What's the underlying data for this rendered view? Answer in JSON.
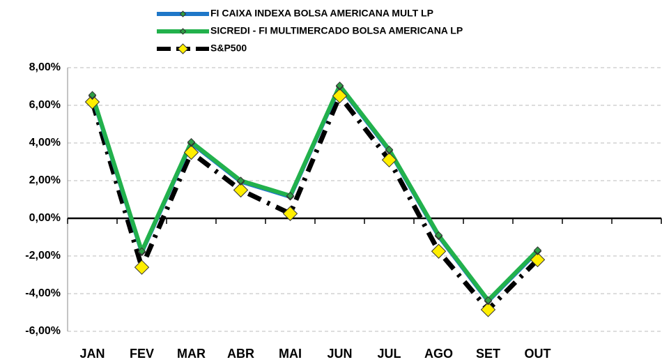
{
  "chart_data": {
    "type": "line",
    "categories": [
      "JAN",
      "FEV",
      "MAR",
      "ABR",
      "MAI",
      "JUN",
      "JUL",
      "AGO",
      "SET",
      "OUT",
      null,
      null
    ],
    "series": [
      {
        "name": "FI CAIXA INDEXA BOLSA AMERICANA MULT LP",
        "color": "#1f77c8",
        "marker_color": "#2e9e45",
        "values": [
          6.5,
          -1.8,
          4.0,
          1.95,
          1.15,
          7.0,
          3.6,
          -0.95,
          -4.4,
          -1.75,
          null,
          null
        ]
      },
      {
        "name": "SICREDI - FI MULTIMERCADO BOLSA AMERICANA LP",
        "color": "#22b14c",
        "marker_color": "#2e9e45",
        "values": [
          6.55,
          -1.75,
          4.05,
          2.0,
          1.2,
          7.05,
          3.65,
          -0.9,
          -4.35,
          -1.7,
          null,
          null
        ]
      },
      {
        "name": "S&P500",
        "color": "#000000",
        "marker_color": "#ffee00",
        "dashed": true,
        "values": [
          6.18,
          -2.6,
          3.5,
          1.5,
          0.25,
          6.5,
          3.1,
          -1.75,
          -4.85,
          -2.2,
          null,
          null
        ]
      }
    ],
    "ylim": [
      -6,
      8
    ],
    "yticks": [
      {
        "value": -6,
        "label": "-6,00%"
      },
      {
        "value": -4,
        "label": "-4,00%"
      },
      {
        "value": -2,
        "label": "-2,00%"
      },
      {
        "value": 0,
        "label": "0,00%"
      },
      {
        "value": 2,
        "label": "2,00%"
      },
      {
        "value": 4,
        "label": "4,00%"
      },
      {
        "value": 6,
        "label": "6,00%"
      },
      {
        "value": 8,
        "label": "8,00%"
      }
    ],
    "grid": true,
    "legend": "top"
  }
}
